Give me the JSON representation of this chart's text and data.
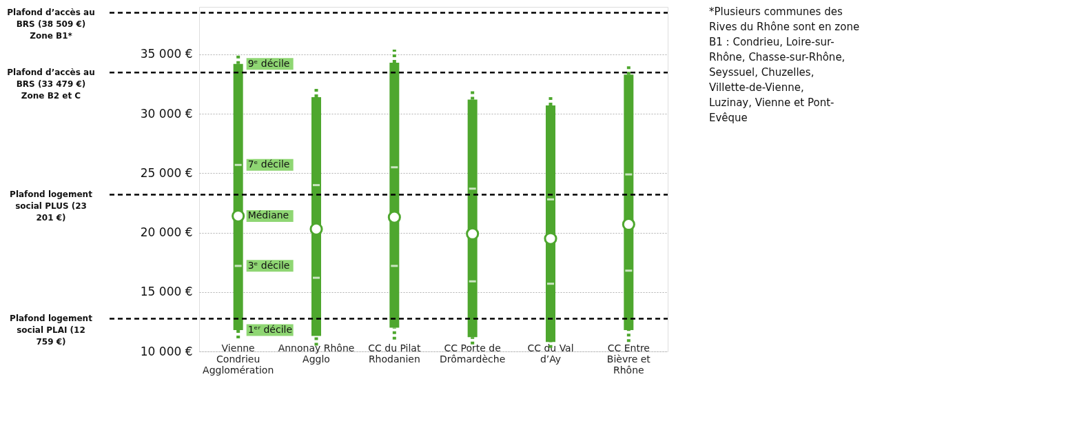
{
  "chart_data": {
    "type": "bar",
    "categories": [
      "Vienne Condrieu Agglomération",
      "Annonay Rhône Agglo",
      "CC du Pilat Rhodanien",
      "CC Porte de Drômardèche",
      "CC du Val d’Ay",
      "CC Entre Bièvre et Rhône"
    ],
    "series": [
      {
        "type": "bar",
        "color": "#4ea72e",
        "base": [
          11800,
          11300,
          12000,
          11200,
          10800,
          11800
        ],
        "values": [
          22400,
          20100,
          22300,
          20000,
          19900,
          21500
        ],
        "errors": [
          [
            11100,
            35000
          ],
          [
            10500,
            32200
          ],
          [
            11000,
            35400
          ],
          [
            10600,
            31900
          ],
          [
            10300,
            31500
          ],
          [
            10800,
            34100
          ]
        ]
      },
      {
        "type": "scatter",
        "marker": "square",
        "color": "#ffffff",
        "values": [
          25700,
          24000,
          25500,
          23700,
          22800,
          24900
        ]
      },
      {
        "type": "scatter",
        "marker": "circle",
        "color": "#ffffff",
        "values": [
          21400,
          20300,
          21300,
          19900,
          19500,
          20700
        ]
      },
      {
        "type": "scatter",
        "marker": "square",
        "color": "#ffffff",
        "values": [
          17200,
          16200,
          17200,
          15900,
          15700,
          16800
        ]
      }
    ],
    "ylim": [
      10000,
      39000
    ],
    "yticks": [
      {
        "value": 10000,
        "label": "10 000 €"
      },
      {
        "value": 15000,
        "label": "15 000 €"
      },
      {
        "value": 20000,
        "label": "20 000 €"
      },
      {
        "value": 25000,
        "label": "25 000 €"
      },
      {
        "value": 30000,
        "label": "30 000 €"
      },
      {
        "value": 35000,
        "label": "35 000 €"
      }
    ],
    "grid": "y",
    "ref_lines": [
      {
        "axis": "y",
        "value": 38509,
        "label": "Plafond d’accès au BRS (38 509 €) Zone B1*",
        "color": "#000000",
        "line_style": "dashed"
      },
      {
        "axis": "y",
        "value": 33479,
        "label": "Plafond d’accès au BRS (33 479 €) Zone B2 et C",
        "color": "#000000",
        "line_style": "dashed"
      },
      {
        "axis": "y",
        "value": 23201,
        "label": "Plafond logement social PLUS (23 201 €)",
        "color": "#000000",
        "line_style": "dashed"
      },
      {
        "axis": "y",
        "value": 12759,
        "label": "Plafond logement social PLAI (12 759 €)",
        "color": "#000000",
        "line_style": "dashed"
      }
    ],
    "annotations": [
      {
        "text": "9ᵉ décile",
        "x": "Vienne Condrieu Agglomération",
        "y": 34200
      },
      {
        "text": "7ᵉ décile",
        "x": "Vienne Condrieu Agglomération",
        "y": 25700
      },
      {
        "text": "Médiane",
        "x": "Vienne Condrieu Agglomération",
        "y": 21400
      },
      {
        "text": "3ᵉ décile",
        "x": "Vienne Condrieu Agglomération",
        "y": 17200
      },
      {
        "text": "1ᵉʳ décile",
        "x": "Vienne Condrieu Agglomération",
        "y": 11800
      },
      "*Plusieurs communes des Rives du Rhône sont en zone B1 : Condrieu, Loire-sur-Rhône, Chasse-sur-Rhône, Seyssuel, Chuzelles, Villette-de-Vienne, Luzinay, Vienne et Pont-Evêque"
    ]
  }
}
